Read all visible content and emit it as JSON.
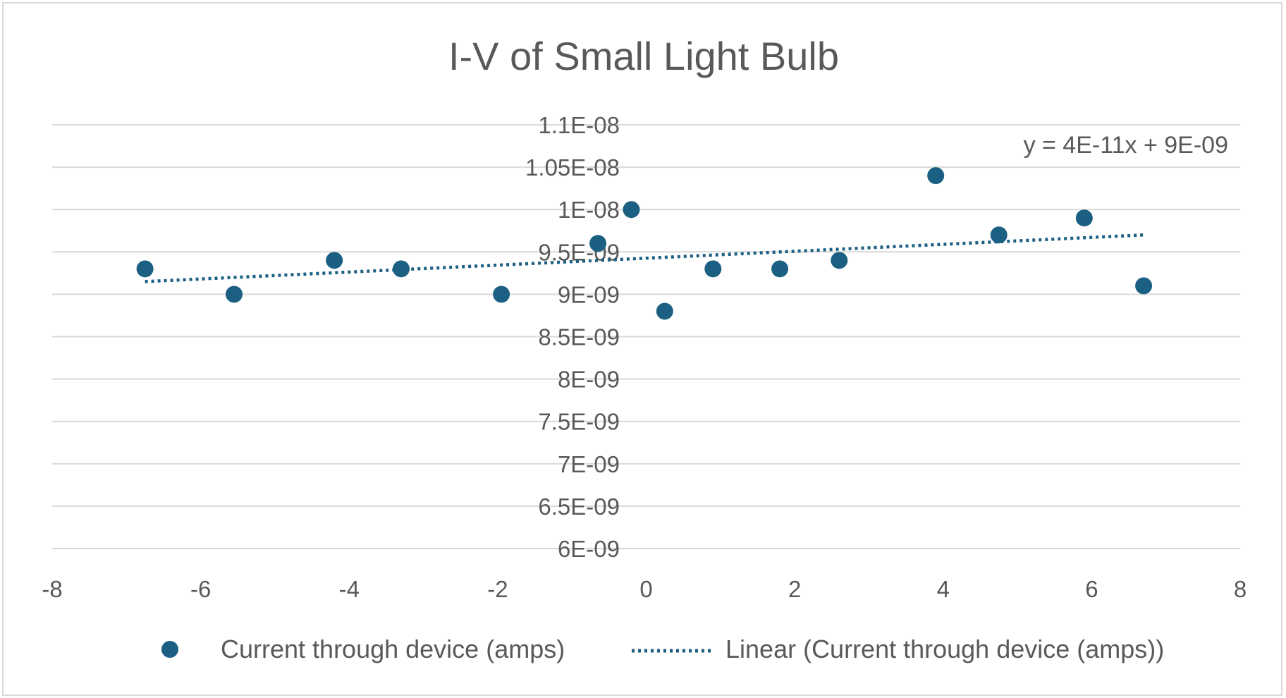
{
  "chart_data": {
    "type": "scatter",
    "title": "I-V of Small Light Bulb",
    "xlabel": "",
    "ylabel": "",
    "xlim": [
      -8,
      8
    ],
    "ylim": [
      6e-09,
      1.1e-08
    ],
    "x_ticks": [
      "-8",
      "-6",
      "-4",
      "-2",
      "0",
      "2",
      "4",
      "6",
      "8"
    ],
    "y_ticks": [
      "6E-09",
      "6.5E-09",
      "7E-09",
      "7.5E-09",
      "8E-09",
      "8.5E-09",
      "9E-09",
      "9.5E-09",
      "1E-08",
      "1.05E-08",
      "1.1E-08"
    ],
    "grid": true,
    "legend_position": "bottom",
    "series": [
      {
        "name": "Current through device (amps)",
        "color": "#1b5f82",
        "x": [
          -6.75,
          -5.55,
          -4.2,
          -3.3,
          -1.95,
          -0.65,
          -0.2,
          0.25,
          0.9,
          1.8,
          2.6,
          3.9,
          4.75,
          5.9,
          6.7
        ],
        "y": [
          9.3e-09,
          9e-09,
          9.4e-09,
          9.3e-09,
          9e-09,
          9.6e-09,
          1e-08,
          8.8e-09,
          9.3e-09,
          9.3e-09,
          9.4e-09,
          1.04e-08,
          9.7e-09,
          9.9e-09,
          9.1e-09
        ]
      }
    ],
    "trendline": {
      "name": "Linear (Current through device (amps))",
      "type": "linear",
      "equation": "y = 4E-11x + 9E-09",
      "x_range": [
        -6.75,
        6.7
      ],
      "y_range": [
        9.15e-09,
        9.7e-09
      ],
      "color": "#1b5f82"
    }
  }
}
